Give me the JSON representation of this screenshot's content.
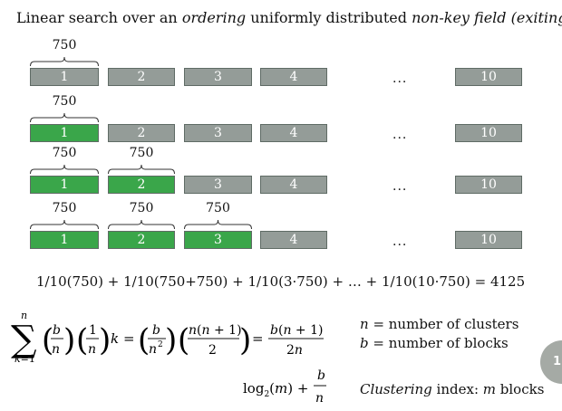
{
  "title": {
    "pre": "Linear search over an ",
    "em1": "ordering",
    "mid": " uniformly distributed ",
    "em2": "non-key field",
    "paren": "(exiting)"
  },
  "blocks": [
    "1",
    "2",
    "3",
    "4",
    "10"
  ],
  "ellipsis": "...",
  "brace_value": "750",
  "formula": "1/10(750) + 1/10(750+750) + 1/10(3·750) + … + 1/10(10·750) = 4125",
  "defs": {
    "n": "n",
    "n_text": " = number of clusters",
    "b": "b",
    "b_text": " = number of blocks"
  },
  "clustering": {
    "em": "Clustering",
    "rest": " index: ",
    "m": "m",
    "tail": " blocks"
  },
  "page_badge": "1",
  "colors": {
    "unread_block": "#949c98",
    "read_block": "#3aa64a"
  }
}
